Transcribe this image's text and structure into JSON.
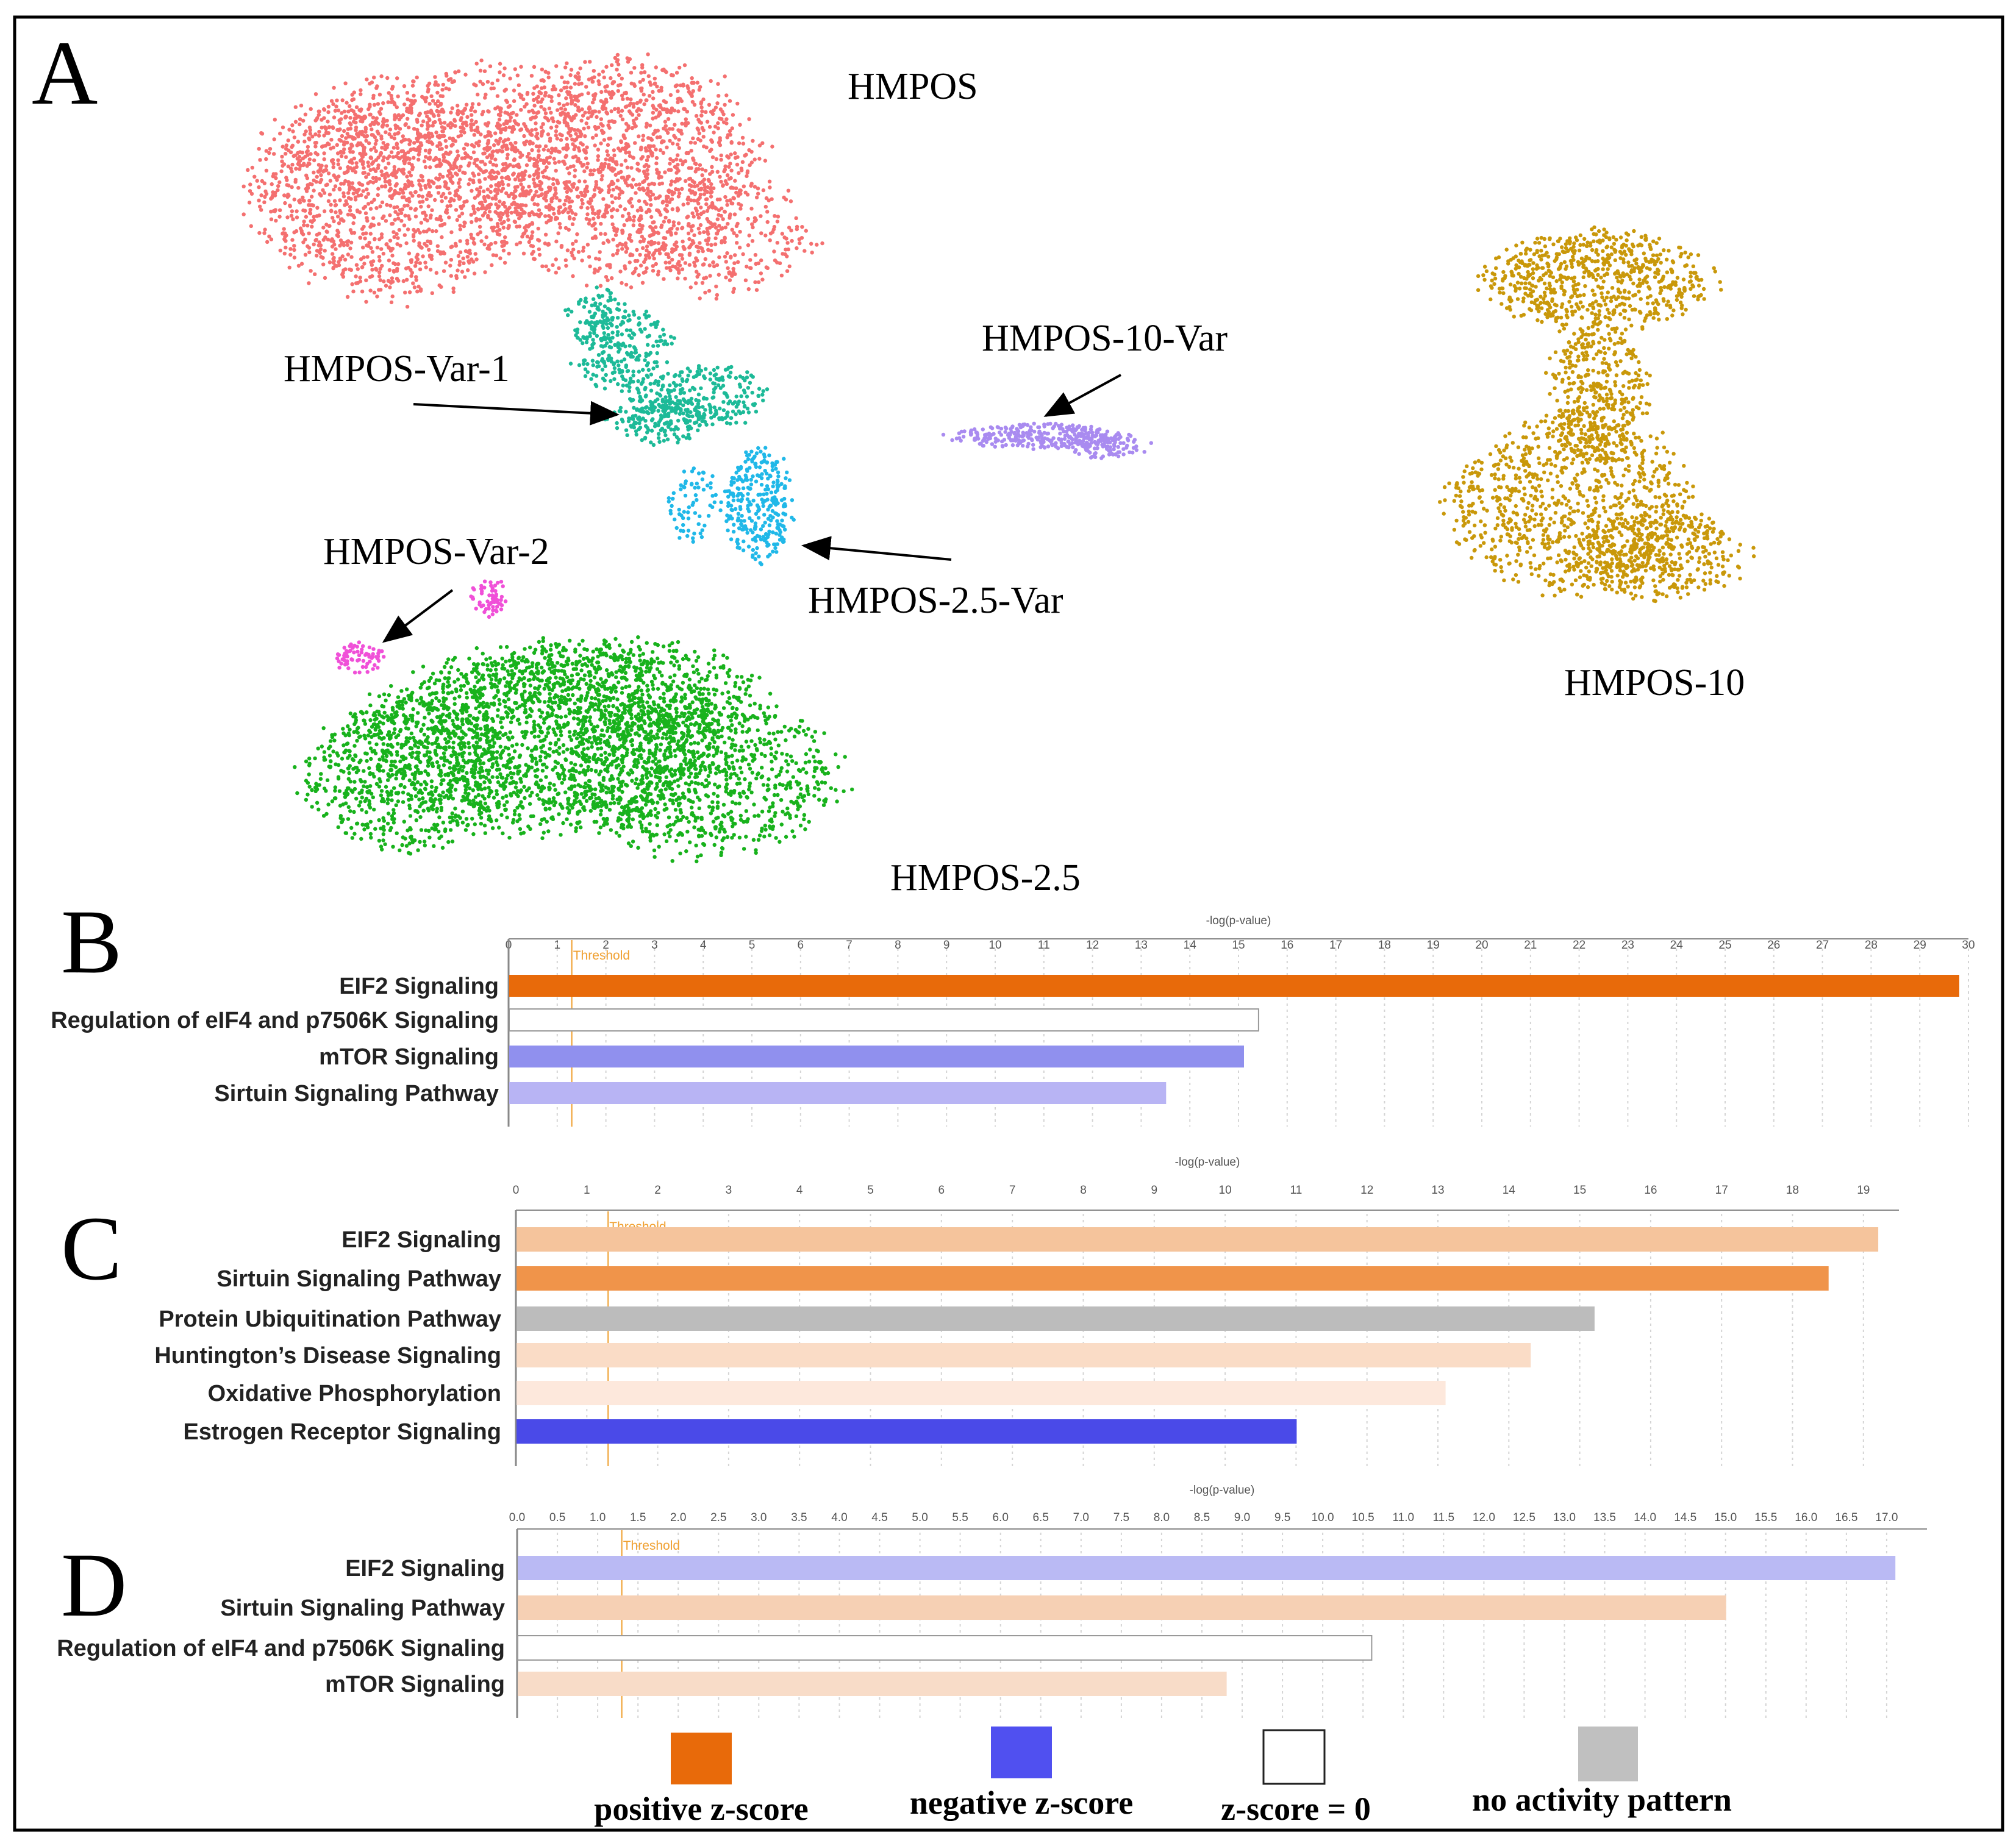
{
  "panels": {
    "A": "A",
    "B": "B",
    "C": "C",
    "D": "D"
  },
  "umap": {
    "labels": {
      "hmpos": "HMPOS",
      "var1": "HMPOS-Var-1",
      "var10": "HMPOS-10-Var",
      "var25": "HMPOS-2.5-Var",
      "var2": "HMPOS-Var-2",
      "h10": "HMPOS-10",
      "h25": "HMPOS-2.5"
    },
    "colors": {
      "hmpos": "#f47070",
      "var1": "#1dba98",
      "var10": "#a98bf0",
      "var25": "#20b8e8",
      "var2": "#f050d8",
      "h10": "#c9980a",
      "h25": "#18b21c"
    }
  },
  "legend": {
    "items": [
      {
        "label": "positive z-score",
        "color": "#e86a0a"
      },
      {
        "label": "negative z-score",
        "color": "#5050f0"
      },
      {
        "label": "z-score = 0",
        "color": "#ffffff"
      },
      {
        "label": "no activity pattern",
        "color": "#c0c0c0"
      }
    ]
  },
  "chart_data": [
    {
      "type": "bar",
      "panel": "B",
      "orientation": "horizontal",
      "xlabel": "-log(p-value)",
      "threshold_label": "Threshold",
      "threshold": 1.3,
      "xlim": [
        0,
        30
      ],
      "ticks": [
        "0",
        "1",
        "2",
        "3",
        "4",
        "5",
        "6",
        "7",
        "8",
        "9",
        "10",
        "11",
        "12",
        "13",
        "14",
        "15",
        "16",
        "17",
        "18",
        "19",
        "20",
        "21",
        "22",
        "23",
        "24",
        "25",
        "26",
        "27",
        "28",
        "29",
        "30"
      ],
      "categories": [
        "EIF2 Signaling",
        "Regulation of eIF4 and p7506K  Signaling",
        "mTOR Signaling",
        "Sirtuin Signaling Pathway"
      ],
      "values": [
        29.8,
        15.4,
        15.1,
        13.5
      ],
      "colors": [
        "#e86a0a",
        "#ffffff",
        "#9090ee",
        "#b8b4f4"
      ]
    },
    {
      "type": "bar",
      "panel": "C",
      "orientation": "horizontal",
      "xlabel": "-log(p-value)",
      "threshold_label": "Threshold",
      "threshold": 1.3,
      "xlim": [
        0,
        19.5
      ],
      "ticks": [
        "0",
        "1",
        "2",
        "3",
        "4",
        "5",
        "6",
        "7",
        "8",
        "9",
        "10",
        "11",
        "12",
        "13",
        "14",
        "15",
        "16",
        "17",
        "18",
        "19"
      ],
      "categories": [
        "EIF2 Signaling",
        "Sirtuin Signaling Pathway",
        "Protein Ubiquitination Pathway",
        "Huntington’s Disease Signaling",
        "Oxidative Phosphorylation",
        "Estrogen Receptor Signaling"
      ],
      "values": [
        19.2,
        18.5,
        15.2,
        14.3,
        13.1,
        11.0
      ],
      "colors": [
        "#f5c49c",
        "#f0944a",
        "#bcbcbc",
        "#fadcc6",
        "#fde8dc",
        "#4a4ae8"
      ]
    },
    {
      "type": "bar",
      "panel": "D",
      "orientation": "horizontal",
      "xlabel": "-log(p-value)",
      "threshold_label": "Threshold",
      "threshold": 1.3,
      "xlim": [
        0,
        17.5
      ],
      "ticks": [
        "0.0",
        "0.5",
        "1.0",
        "1.5",
        "2.0",
        "2.5",
        "3.0",
        "3.5",
        "4.0",
        "4.5",
        "5.0",
        "5.5",
        "6.0",
        "6.5",
        "7.0",
        "7.5",
        "8.0",
        "8.5",
        "9.0",
        "9.5",
        "10.0",
        "10.5",
        "11.0",
        "11.5",
        "12.0",
        "12.5",
        "13.0",
        "13.5",
        "14.0",
        "14.5",
        "15.0",
        "15.5",
        "16.0",
        "16.5",
        "17.0"
      ],
      "categories": [
        "EIF2 Signaling",
        "Sirtuin Signaling Pathway",
        "Regulation of eIF4 and p7506K  Signaling",
        "mTOR Signaling"
      ],
      "values": [
        17.1,
        15.0,
        10.6,
        8.8
      ],
      "colors": [
        "#babaf4",
        "#f6d0b4",
        "#ffffff",
        "#f8dcc8"
      ]
    }
  ]
}
